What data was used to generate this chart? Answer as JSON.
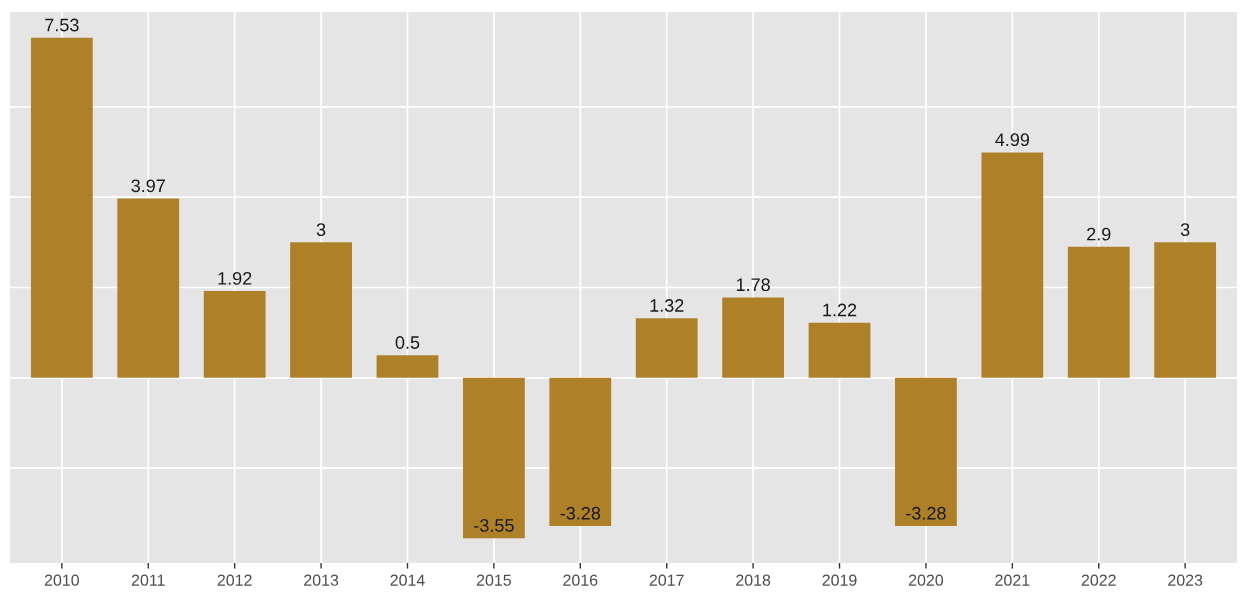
{
  "chart_data": {
    "type": "bar",
    "categories": [
      "2010",
      "2011",
      "2012",
      "2013",
      "2014",
      "2015",
      "2016",
      "2017",
      "2018",
      "2019",
      "2020",
      "2021",
      "2022",
      "2023"
    ],
    "values": [
      7.53,
      3.97,
      1.92,
      3,
      0.5,
      -3.55,
      -3.28,
      1.32,
      1.78,
      1.22,
      -3.28,
      4.99,
      2.9,
      3
    ],
    "color": "#ae8028",
    "ylim": [
      -4.1,
      8.1
    ],
    "yticks": [
      {
        "value": -2,
        "label": null
      },
      {
        "value": 0,
        "label": null
      },
      {
        "value": 2,
        "label": null
      },
      {
        "value": 4,
        "label": null
      },
      {
        "value": 6,
        "label": null
      }
    ],
    "tick_labels": "x",
    "grid": true,
    "data_labels": true
  }
}
